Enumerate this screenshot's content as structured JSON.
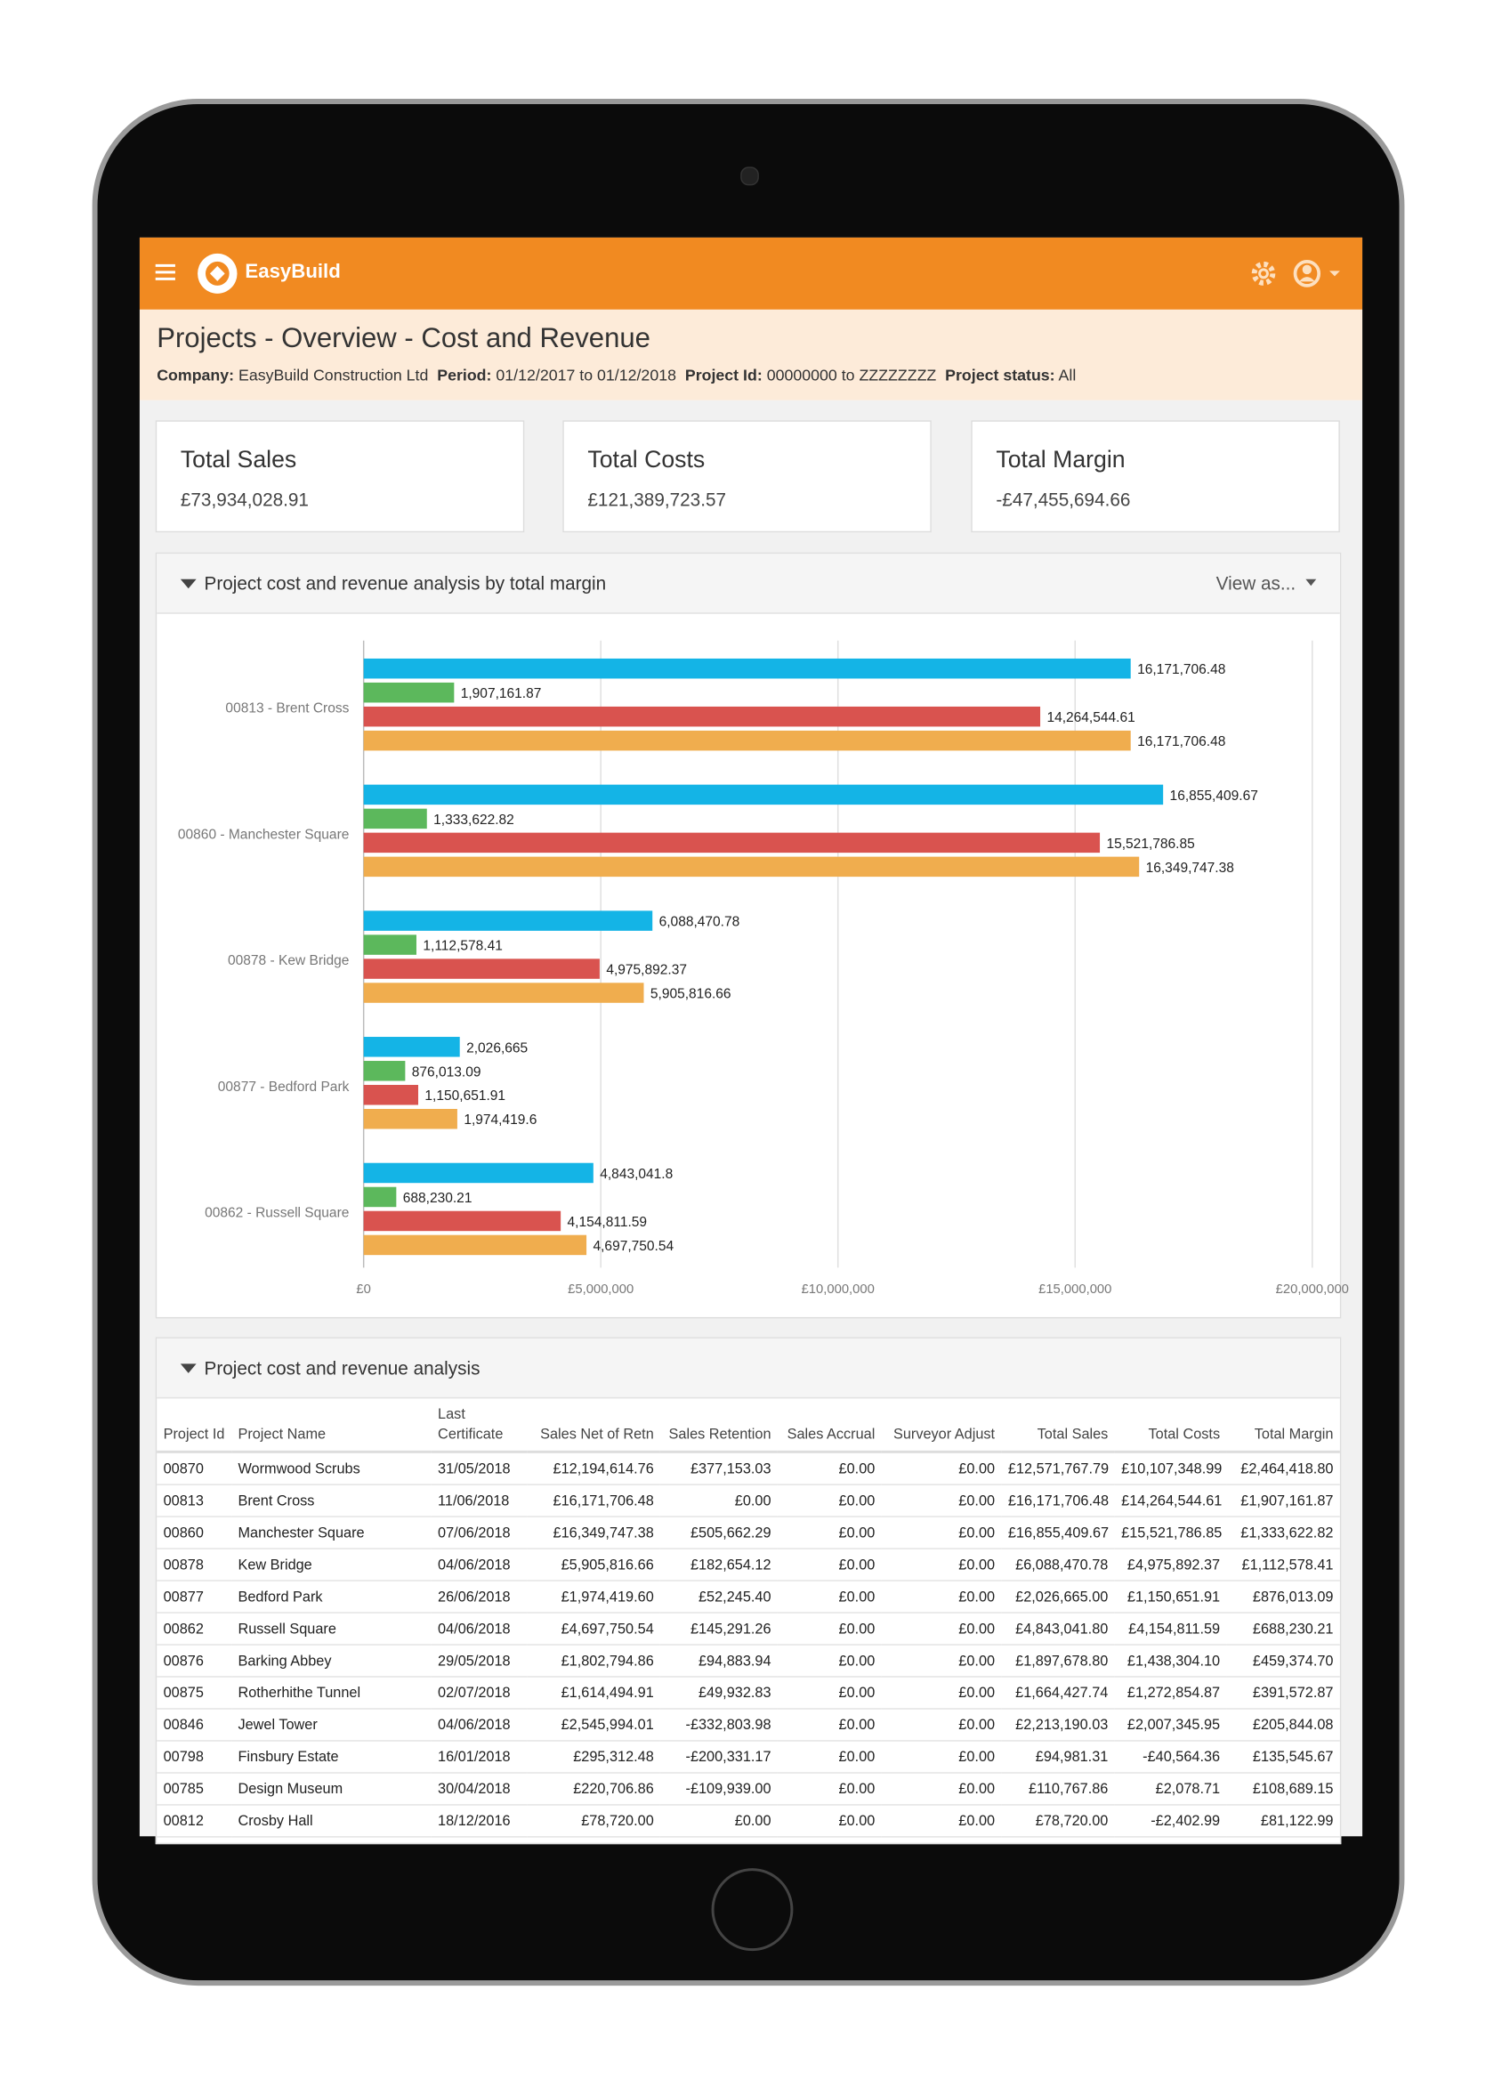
{
  "app": {
    "brand": "EasyBuild",
    "view_as": "View as..."
  },
  "header": {
    "title": "Projects - Overview - Cost and Revenue",
    "filters": [
      {
        "label": "Company:",
        "value": "EasyBuild Construction Ltd"
      },
      {
        "label": "Period:",
        "value": "01/12/2017 to 01/12/2018"
      },
      {
        "label": "Project Id:",
        "value": "00000000 to ZZZZZZZZ"
      },
      {
        "label": "Project status:",
        "value": "All"
      }
    ]
  },
  "kpis": [
    {
      "label": "Total Sales",
      "value": "£73,934,028.91"
    },
    {
      "label": "Total Costs",
      "value": "£121,389,723.57"
    },
    {
      "label": "Total Margin",
      "value": "-£47,455,694.66"
    }
  ],
  "chart_data": {
    "type": "hbar",
    "title": "Project cost and revenue analysis by total margin",
    "categories": [
      "00813 - Brent Cross",
      "00860 - Manchester Square",
      "00878 - Kew Bridge",
      "00877 - Bedford Park",
      "00862 - Russell Square"
    ],
    "series": [
      {
        "color": "#14b4e6",
        "values": [
          16171706.48,
          16855409.67,
          6088470.78,
          2026665,
          4843041.8
        ],
        "value_labels": [
          "16,171,706.48",
          "16,855,409.67",
          "6,088,470.78",
          "2,026,665",
          "4,843,041.8"
        ]
      },
      {
        "color": "#5cb85c",
        "values": [
          1907161.87,
          1333622.82,
          1112578.41,
          876013.09,
          688230.21
        ],
        "value_labels": [
          "1,907,161.87",
          "1,333,622.82",
          "1,112,578.41",
          "876,013.09",
          "688,230.21"
        ]
      },
      {
        "color": "#d9534f",
        "values": [
          14264544.61,
          15521786.85,
          4975892.37,
          1150651.91,
          4154811.59
        ],
        "value_labels": [
          "14,264,544.61",
          "15,521,786.85",
          "4,975,892.37",
          "1,150,651.91",
          "4,154,811.59"
        ]
      },
      {
        "color": "#f0ad4e",
        "values": [
          16171706.48,
          16349747.38,
          5905816.66,
          1974419.6,
          4697750.54
        ],
        "value_labels": [
          "16,171,706.48",
          "16,349,747.38",
          "5,905,816.66",
          "1,974,419.6",
          "4,697,750.54"
        ]
      }
    ],
    "xlim": [
      0,
      20000000
    ],
    "xticks": [
      {
        "value": 0,
        "label": "£0"
      },
      {
        "value": 5000000,
        "label": "£5,000,000"
      },
      {
        "value": 10000000,
        "label": "£10,000,000"
      },
      {
        "value": 15000000,
        "label": "£15,000,000"
      },
      {
        "value": 20000000,
        "label": "£20,000,000"
      }
    ],
    "grid": true
  },
  "table": {
    "title": "Project cost and revenue analysis",
    "columns": [
      "Project Id",
      "Project Name",
      "Last Certificate",
      "Sales Net of Retn",
      "Sales Retention",
      "Sales Accrual",
      "Surveyor Adjust",
      "Total Sales",
      "Total Costs",
      "Total Margin"
    ],
    "rows": [
      [
        "00870",
        "Wormwood Scrubs",
        "31/05/2018",
        "£12,194,614.76",
        "£377,153.03",
        "£0.00",
        "£0.00",
        "£12,571,767.79",
        "£10,107,348.99",
        "£2,464,418.80"
      ],
      [
        "00813",
        "Brent Cross",
        "11/06/2018",
        "£16,171,706.48",
        "£0.00",
        "£0.00",
        "£0.00",
        "£16,171,706.48",
        "£14,264,544.61",
        "£1,907,161.87"
      ],
      [
        "00860",
        "Manchester Square",
        "07/06/2018",
        "£16,349,747.38",
        "£505,662.29",
        "£0.00",
        "£0.00",
        "£16,855,409.67",
        "£15,521,786.85",
        "£1,333,622.82"
      ],
      [
        "00878",
        "Kew Bridge",
        "04/06/2018",
        "£5,905,816.66",
        "£182,654.12",
        "£0.00",
        "£0.00",
        "£6,088,470.78",
        "£4,975,892.37",
        "£1,112,578.41"
      ],
      [
        "00877",
        "Bedford Park",
        "26/06/2018",
        "£1,974,419.60",
        "£52,245.40",
        "£0.00",
        "£0.00",
        "£2,026,665.00",
        "£1,150,651.91",
        "£876,013.09"
      ],
      [
        "00862",
        "Russell Square",
        "04/06/2018",
        "£4,697,750.54",
        "£145,291.26",
        "£0.00",
        "£0.00",
        "£4,843,041.80",
        "£4,154,811.59",
        "£688,230.21"
      ],
      [
        "00876",
        "Barking Abbey",
        "29/05/2018",
        "£1,802,794.86",
        "£94,883.94",
        "£0.00",
        "£0.00",
        "£1,897,678.80",
        "£1,438,304.10",
        "£459,374.70"
      ],
      [
        "00875",
        "Rotherhithe Tunnel",
        "02/07/2018",
        "£1,614,494.91",
        "£49,932.83",
        "£0.00",
        "£0.00",
        "£1,664,427.74",
        "£1,272,854.87",
        "£391,572.87"
      ],
      [
        "00846",
        "Jewel Tower",
        "04/06/2018",
        "£2,545,994.01",
        "-£332,803.98",
        "£0.00",
        "£0.00",
        "£2,213,190.03",
        "£2,007,345.95",
        "£205,844.08"
      ],
      [
        "00798",
        "Finsbury Estate",
        "16/01/2018",
        "£295,312.48",
        "-£200,331.17",
        "£0.00",
        "£0.00",
        "£94,981.31",
        "-£40,564.36",
        "£135,545.67"
      ],
      [
        "00785",
        "Design Museum",
        "30/04/2018",
        "£220,706.86",
        "-£109,939.00",
        "£0.00",
        "£0.00",
        "£110,767.86",
        "£2,078.71",
        "£108,689.15"
      ],
      [
        "00812",
        "Crosby Hall",
        "18/12/2016",
        "£78,720.00",
        "£0.00",
        "£0.00",
        "£0.00",
        "£78,720.00",
        "-£2,402.99",
        "£81,122.99"
      ]
    ]
  }
}
